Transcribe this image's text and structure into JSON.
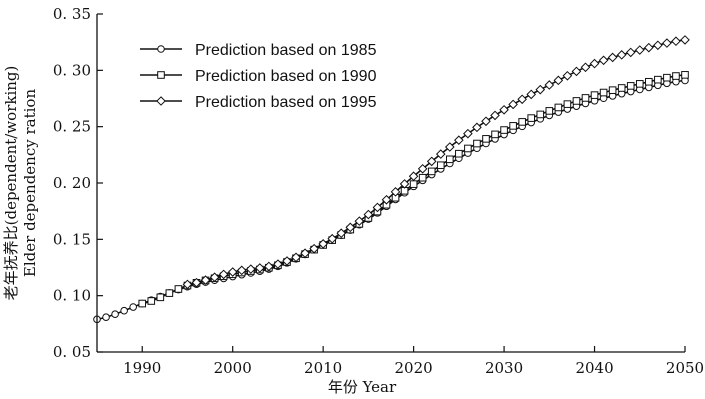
{
  "chart_data": {
    "type": "line",
    "title": "",
    "xlabel": "年份 Year",
    "ylabel_line1": "老年抚养比(dependent/working)",
    "ylabel_line2": "Elder dependency ration",
    "xlim": [
      1985,
      2050
    ],
    "ylim": [
      0.05,
      0.35
    ],
    "xticks": [
      1990,
      2000,
      2010,
      2020,
      2030,
      2040,
      2050
    ],
    "yticks": [
      0.05,
      0.1,
      0.15,
      0.2,
      0.25,
      0.3,
      0.35
    ],
    "ytick_labels": [
      "0. 05",
      "0. 10",
      "0. 15",
      "0. 20",
      "0. 25",
      "0. 30",
      "0. 35"
    ],
    "grid": false,
    "legend_position": "top-left",
    "x": [
      1985,
      1990,
      1995,
      2000,
      2005,
      2010,
      2015,
      2020,
      2025,
      2030,
      2035,
      2040,
      2045,
      2050
    ],
    "series": [
      {
        "name": "Prediction based on 1985",
        "marker": "circle",
        "x_start": 1985,
        "values": [
          0.079,
          0.093,
          0.108,
          0.117,
          0.126,
          0.145,
          0.168,
          0.197,
          0.222,
          0.243,
          0.26,
          0.273,
          0.283,
          0.291
        ]
      },
      {
        "name": "Prediction based on 1990",
        "marker": "square",
        "x_start": 1990,
        "values": [
          null,
          0.093,
          0.109,
          0.119,
          0.127,
          0.145,
          0.169,
          0.199,
          0.226,
          0.247,
          0.264,
          0.278,
          0.288,
          0.296
        ]
      },
      {
        "name": "Prediction based on 1995",
        "marker": "diamond",
        "x_start": 1995,
        "values": [
          null,
          null,
          0.11,
          0.121,
          0.128,
          0.146,
          0.172,
          0.206,
          0.238,
          0.265,
          0.287,
          0.306,
          0.318,
          0.327
        ]
      }
    ]
  }
}
